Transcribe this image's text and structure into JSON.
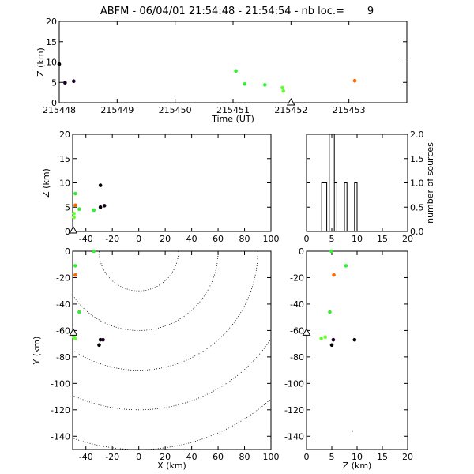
{
  "title": "ABFM - 06/04/01 21:54:48 - 21:54:54 - nb loc.=       9",
  "chart_data": [
    {
      "id": "time_height",
      "type": "scatter",
      "xlabel": "Time (UT)",
      "ylabel": "Z (km)",
      "xlim": [
        215448,
        215454
      ],
      "ylim": [
        0,
        20
      ],
      "xticks": [
        215448,
        215449,
        215450,
        215451,
        215452,
        215453
      ],
      "yticks": [
        0,
        5,
        10,
        15,
        20
      ],
      "points": [
        {
          "x": 215448.0,
          "y": 9.5,
          "color": "#000000"
        },
        {
          "x": 215448.1,
          "y": 4.9,
          "color": "#1a0022"
        },
        {
          "x": 215448.25,
          "y": 5.3,
          "color": "#1a0022"
        },
        {
          "x": 215451.05,
          "y": 7.8,
          "color": "#33ee33"
        },
        {
          "x": 215451.2,
          "y": 4.6,
          "color": "#33ee33"
        },
        {
          "x": 215451.55,
          "y": 4.4,
          "color": "#33ee33"
        },
        {
          "x": 215451.85,
          "y": 3.7,
          "color": "#66ff33"
        },
        {
          "x": 215451.87,
          "y": 2.9,
          "color": "#66ff33"
        },
        {
          "x": 215453.1,
          "y": 5.4,
          "color": "#ff6600"
        }
      ],
      "marker": {
        "x": 215452.0,
        "label": "triangle"
      }
    },
    {
      "id": "x_z",
      "type": "scatter",
      "xlabel": "",
      "ylabel": "Z (km)",
      "xlim": [
        -50,
        100
      ],
      "ylim": [
        0,
        20
      ],
      "xticks": [
        -40,
        -20,
        0,
        20,
        40,
        60,
        80,
        100
      ],
      "yticks": [
        0,
        5,
        10,
        15,
        20
      ],
      "points": [
        {
          "x": -29,
          "y": 9.5,
          "color": "#000000"
        },
        {
          "x": -29,
          "y": 5.0,
          "color": "#000000"
        },
        {
          "x": -26,
          "y": 5.3,
          "color": "#1a0022"
        },
        {
          "x": -48,
          "y": 7.8,
          "color": "#33ee33"
        },
        {
          "x": -45,
          "y": 4.6,
          "color": "#33ee33"
        },
        {
          "x": -34,
          "y": 4.4,
          "color": "#33ee33"
        },
        {
          "x": -49,
          "y": 3.7,
          "color": "#66ff33"
        },
        {
          "x": -49,
          "y": 2.9,
          "color": "#66ff33"
        },
        {
          "x": -48,
          "y": 5.4,
          "color": "#ff6600"
        }
      ],
      "marker": {
        "x": -49.5,
        "y": 0
      }
    },
    {
      "id": "histogram",
      "type": "bar",
      "ylabel": "number of sources",
      "xlim": [
        0,
        20
      ],
      "ylim": [
        0,
        2.0
      ],
      "xticks": [
        0,
        5,
        10,
        15,
        20
      ],
      "yticks": [
        0.0,
        0.5,
        1.0,
        1.5,
        2.0
      ],
      "bins": [
        {
          "x0": 3.0,
          "x1": 4.0,
          "value": 1
        },
        {
          "x0": 4.5,
          "x1": 5.5,
          "value": 2
        },
        {
          "x0": 5.5,
          "x1": 6.0,
          "value": 1
        },
        {
          "x0": 7.5,
          "x1": 8.0,
          "value": 1
        },
        {
          "x0": 9.5,
          "x1": 10.0,
          "value": 1
        }
      ]
    },
    {
      "id": "x_y",
      "type": "scatter",
      "xlabel": "X (km)",
      "ylabel": "Y (km)",
      "xlim": [
        -50,
        100
      ],
      "ylim": [
        -150,
        0
      ],
      "xticks": [
        -40,
        -20,
        0,
        20,
        40,
        60,
        80,
        100
      ],
      "yticks": [
        0,
        -20,
        -40,
        -60,
        -80,
        -100,
        -120,
        -140
      ],
      "range_rings_km": [
        30,
        60,
        90,
        120,
        150
      ],
      "ring_center": [
        0,
        0
      ],
      "points": [
        {
          "x": -29,
          "y": -67,
          "color": "#000000"
        },
        {
          "x": -30,
          "y": -71,
          "color": "#000000"
        },
        {
          "x": -27,
          "y": -67,
          "color": "#1a0022"
        },
        {
          "x": -34,
          "y": 0,
          "color": "#33ee33"
        },
        {
          "x": -48,
          "y": -11,
          "color": "#33ee33"
        },
        {
          "x": -45,
          "y": -46,
          "color": "#33ee33"
        },
        {
          "x": -49,
          "y": -65,
          "color": "#66ff33"
        },
        {
          "x": -48,
          "y": -66,
          "color": "#66ff33"
        },
        {
          "x": -48,
          "y": -18,
          "color": "#ff6600"
        }
      ],
      "marker": {
        "x": -49.5,
        "y": -63
      }
    },
    {
      "id": "z_y",
      "type": "scatter",
      "xlabel": "Z (km)",
      "ylabel": "",
      "xlim": [
        0,
        20
      ],
      "ylim": [
        -150,
        0
      ],
      "xticks": [
        0,
        5,
        10,
        15,
        20
      ],
      "yticks": [
        0,
        -20,
        -40,
        -60,
        -80,
        -100,
        -120,
        -140
      ],
      "points": [
        {
          "x": 9.5,
          "y": -67,
          "color": "#000000"
        },
        {
          "x": 5.0,
          "y": -71,
          "color": "#000000"
        },
        {
          "x": 5.3,
          "y": -67,
          "color": "#1a0022"
        },
        {
          "x": 7.8,
          "y": -11,
          "color": "#33ee33"
        },
        {
          "x": 4.9,
          "y": 0,
          "color": "#33ee33"
        },
        {
          "x": 4.6,
          "y": -46,
          "color": "#33ee33"
        },
        {
          "x": 3.7,
          "y": -65,
          "color": "#66ff33"
        },
        {
          "x": 2.9,
          "y": -66,
          "color": "#66ff33"
        },
        {
          "x": 5.4,
          "y": -18,
          "color": "#ff6600"
        },
        {
          "x": 9.1,
          "y": -136,
          "color": "#000000",
          "tiny": true
        }
      ],
      "marker": {
        "x": 0,
        "y": -63
      }
    }
  ]
}
